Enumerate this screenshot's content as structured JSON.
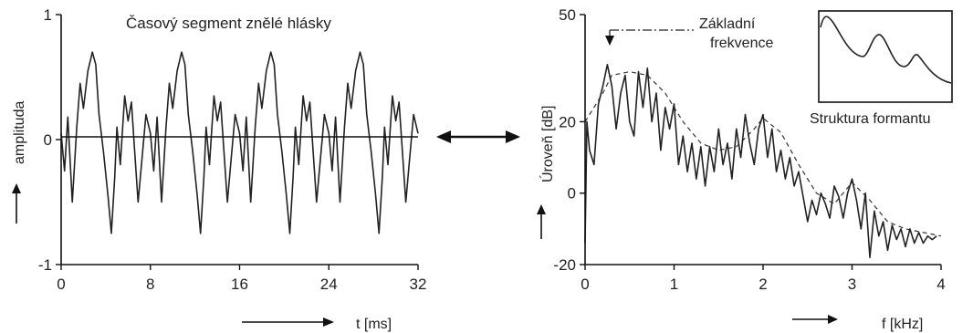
{
  "chart_data": [
    {
      "type": "line",
      "title": "Časový segment znělé hlásky",
      "xlabel": "t [ms]",
      "ylabel": "amplituda",
      "xlim": [
        0,
        32
      ],
      "ylim": [
        -1,
        1
      ],
      "x_ticks": [
        "0",
        "8",
        "16",
        "24",
        "32"
      ],
      "y_ticks": [
        "1",
        "0",
        "-1"
      ],
      "series": [
        {
          "x": [
            0,
            0.3,
            0.6,
            1.0,
            1.4,
            1.7,
            2.0,
            2.4,
            2.8,
            3.1,
            3.4,
            3.8,
            4.2,
            4.5,
            4.8,
            5.0,
            5.3,
            5.7,
            6.0,
            6.3,
            6.6,
            6.9,
            7.2,
            7.6,
            8.0,
            8.3,
            8.6,
            9.0,
            9.4,
            9.7,
            10.0,
            10.4,
            10.8,
            11.1,
            11.4,
            11.8,
            12.2,
            12.5,
            12.8,
            13.0,
            13.3,
            13.7,
            14.0,
            14.3,
            14.6,
            14.9,
            15.2,
            15.6,
            16.0,
            16.3,
            16.6,
            17.0,
            17.4,
            17.7,
            18.0,
            18.4,
            18.8,
            19.1,
            19.4,
            19.8,
            20.2,
            20.5,
            20.8,
            21.0,
            21.3,
            21.7,
            22.0,
            22.3,
            22.6,
            22.9,
            23.2,
            23.6,
            24.0,
            24.3,
            24.6,
            25.0,
            25.4,
            25.7,
            26.0,
            26.4,
            26.8,
            27.1,
            27.4,
            27.8,
            28.2,
            28.5,
            28.8,
            29.0,
            29.3,
            29.7,
            30.0,
            30.3,
            30.6,
            30.9,
            31.2,
            31.6,
            32.0
          ],
          "y": [
            0.05,
            -0.25,
            0.18,
            -0.5,
            0.1,
            0.45,
            0.25,
            0.55,
            0.7,
            0.6,
            0.2,
            -0.1,
            -0.45,
            -0.75,
            -0.3,
            0.1,
            -0.2,
            0.35,
            0.15,
            0.3,
            -0.1,
            -0.5,
            -0.2,
            0.2,
            0.05,
            -0.25,
            0.18,
            -0.5,
            0.1,
            0.45,
            0.25,
            0.55,
            0.7,
            0.6,
            0.2,
            -0.1,
            -0.45,
            -0.75,
            -0.3,
            0.1,
            -0.2,
            0.35,
            0.15,
            0.3,
            -0.1,
            -0.5,
            -0.2,
            0.2,
            0.05,
            -0.25,
            0.18,
            -0.5,
            0.1,
            0.45,
            0.25,
            0.55,
            0.7,
            0.6,
            0.2,
            -0.1,
            -0.45,
            -0.75,
            -0.3,
            0.1,
            -0.2,
            0.35,
            0.15,
            0.3,
            -0.1,
            -0.5,
            -0.2,
            0.2,
            0.05,
            -0.25,
            0.18,
            -0.5,
            0.1,
            0.45,
            0.25,
            0.55,
            0.7,
            0.6,
            0.2,
            -0.1,
            -0.45,
            -0.75,
            -0.3,
            0.1,
            -0.2,
            0.35,
            0.15,
            0.3,
            -0.1,
            -0.5,
            -0.2,
            0.2,
            0.05
          ]
        }
      ]
    },
    {
      "type": "line",
      "xlabel": "f [kHz]",
      "ylabel": "Úroveň [dB]",
      "xlim": [
        0,
        4
      ],
      "ylim": [
        -20,
        50
      ],
      "x_ticks": [
        "0",
        "1",
        "2",
        "3",
        "4"
      ],
      "y_ticks": [
        "50",
        "20",
        "0",
        "-20"
      ],
      "annotations": [
        "Základní",
        "frekvence"
      ],
      "series": [
        {
          "name": "spectrum",
          "x": [
            0,
            0.02,
            0.05,
            0.1,
            0.15,
            0.2,
            0.25,
            0.3,
            0.35,
            0.4,
            0.45,
            0.5,
            0.55,
            0.6,
            0.65,
            0.7,
            0.75,
            0.8,
            0.85,
            0.9,
            0.95,
            1.0,
            1.05,
            1.1,
            1.15,
            1.2,
            1.25,
            1.3,
            1.35,
            1.4,
            1.45,
            1.5,
            1.55,
            1.6,
            1.65,
            1.7,
            1.75,
            1.8,
            1.85,
            1.9,
            1.95,
            2.0,
            2.05,
            2.1,
            2.15,
            2.2,
            2.25,
            2.3,
            2.35,
            2.4,
            2.45,
            2.5,
            2.55,
            2.6,
            2.65,
            2.7,
            2.75,
            2.8,
            2.85,
            2.9,
            2.95,
            3.0,
            3.05,
            3.1,
            3.15,
            3.2,
            3.25,
            3.3,
            3.35,
            3.4,
            3.45,
            3.5,
            3.55,
            3.6,
            3.65,
            3.7,
            3.75,
            3.8,
            3.85,
            3.9,
            3.95
          ],
          "y": [
            -14,
            20,
            12,
            8,
            25,
            30,
            36,
            30,
            18,
            28,
            33,
            20,
            16,
            34,
            24,
            35,
            20,
            28,
            12,
            24,
            18,
            25,
            8,
            16,
            6,
            14,
            4,
            13,
            2,
            13,
            6,
            18,
            8,
            14,
            4,
            18,
            10,
            22,
            14,
            8,
            18,
            22,
            10,
            18,
            6,
            12,
            4,
            10,
            2,
            6,
            -1,
            -8,
            -2,
            -6,
            0,
            -3,
            -7,
            2,
            -1,
            -7,
            0,
            4,
            -2,
            -10,
            0,
            -18,
            -5,
            -12,
            -8,
            -16,
            -9,
            -13,
            -10,
            -15,
            -10,
            -14,
            -11,
            -14,
            -12,
            -13,
            -12
          ]
        },
        {
          "name": "envelope",
          "x": [
            0,
            0.2,
            0.3,
            0.5,
            0.7,
            0.9,
            1.1,
            1.3,
            1.5,
            1.7,
            1.9,
            2.0,
            2.2,
            2.4,
            2.6,
            2.8,
            3.0,
            3.2,
            3.4,
            3.6,
            3.8,
            4.0
          ],
          "y": [
            20,
            28,
            33,
            34,
            33,
            28,
            20,
            14,
            12,
            13,
            18,
            21,
            17,
            8,
            0,
            -3,
            3,
            -2,
            -8,
            -10,
            -11,
            -12
          ]
        }
      ]
    }
  ],
  "inset": {
    "label": "Struktura formantu"
  },
  "center_arrow": "double-arrow-icon",
  "axis_arrows": "right-arrow-icon up-arrow-icon"
}
